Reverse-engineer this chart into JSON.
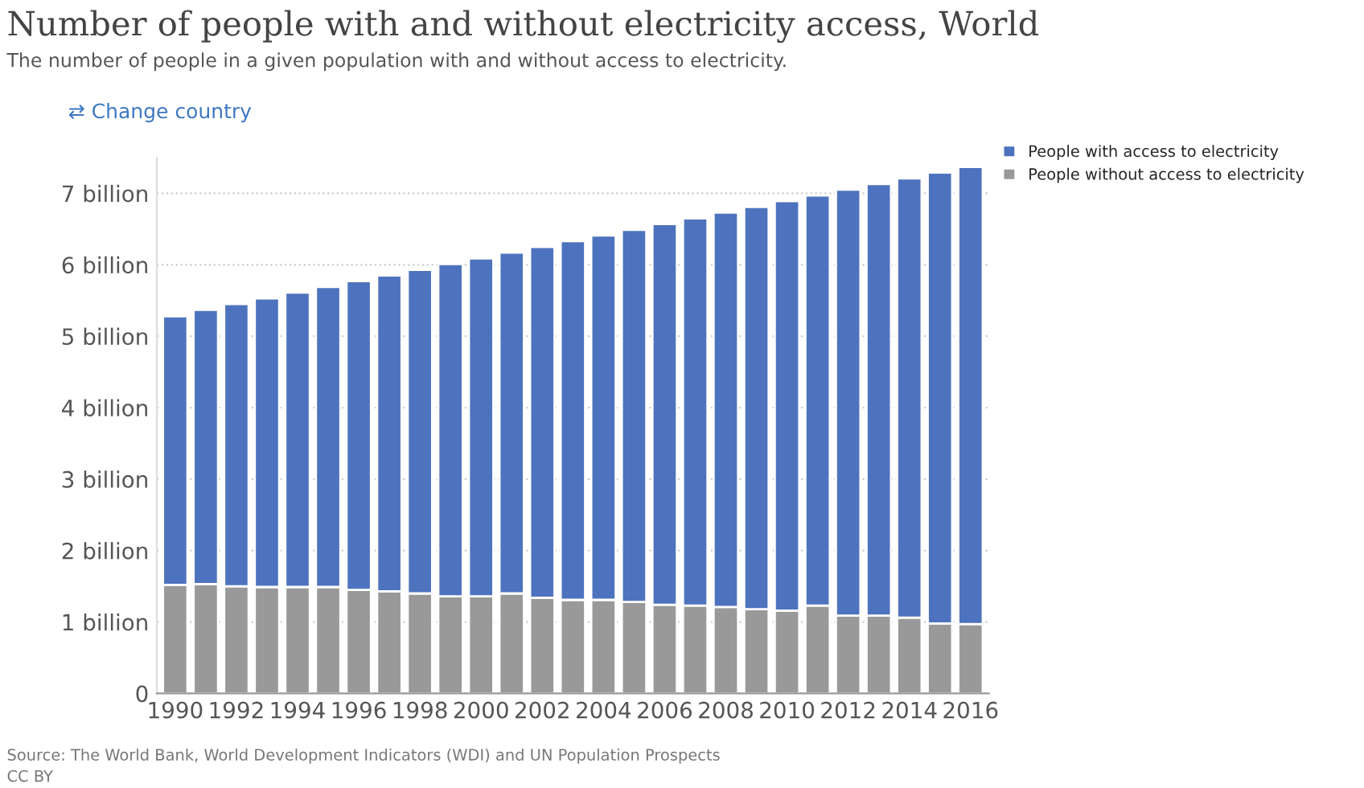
{
  "chart_data": {
    "type": "bar",
    "stacked": true,
    "title": "Number of people with and without electricity access, World",
    "subtitle": "The number of people in a given population with and without access to electricity.",
    "annotations": [
      "⇄ Change country",
      "Source: The World Bank, World Development Indicators (WDI) and UN Population Prospects",
      "CC BY"
    ],
    "categories": [
      "1990",
      null,
      "1992",
      null,
      "1994",
      null,
      "1996",
      null,
      "1998",
      null,
      "2000",
      null,
      "2002",
      null,
      "2004",
      null,
      "2006",
      null,
      "2008",
      null,
      "2010",
      null,
      "2012",
      null,
      "2014",
      null,
      "2016"
    ],
    "series": [
      {
        "name": "People without access to electricity",
        "color": "#999999",
        "values": [
          1.52,
          1.53,
          1.5,
          1.49,
          1.49,
          1.49,
          1.45,
          1.43,
          1.4,
          1.36,
          1.36,
          1.4,
          1.34,
          1.31,
          1.31,
          1.28,
          1.24,
          1.23,
          1.21,
          1.18,
          1.16,
          1.23,
          1.09,
          1.09,
          1.06,
          0.98,
          0.97
        ]
      },
      {
        "name": "People with access to electricity",
        "color": "#4e73be",
        "values": [
          3.76,
          3.84,
          3.95,
          4.04,
          4.12,
          4.2,
          4.32,
          4.42,
          4.53,
          4.65,
          4.73,
          4.77,
          4.91,
          5.02,
          5.1,
          5.21,
          5.33,
          5.42,
          5.52,
          5.63,
          5.73,
          5.74,
          5.96,
          6.04,
          6.15,
          6.31,
          6.4
        ]
      }
    ],
    "yticks": [
      0,
      {
        "value": 1,
        "label": "1 billion"
      },
      {
        "value": 2,
        "label": "2 billion"
      },
      {
        "value": 3,
        "label": "3 billion"
      },
      {
        "value": 4,
        "label": "4 billion"
      },
      {
        "value": 5,
        "label": "5 billion"
      },
      {
        "value": 6,
        "label": "6 billion"
      },
      {
        "value": 7,
        "label": "7 billion"
      }
    ],
    "ylim": [
      0,
      7.5
    ],
    "grid": "y",
    "legend": "top right"
  }
}
